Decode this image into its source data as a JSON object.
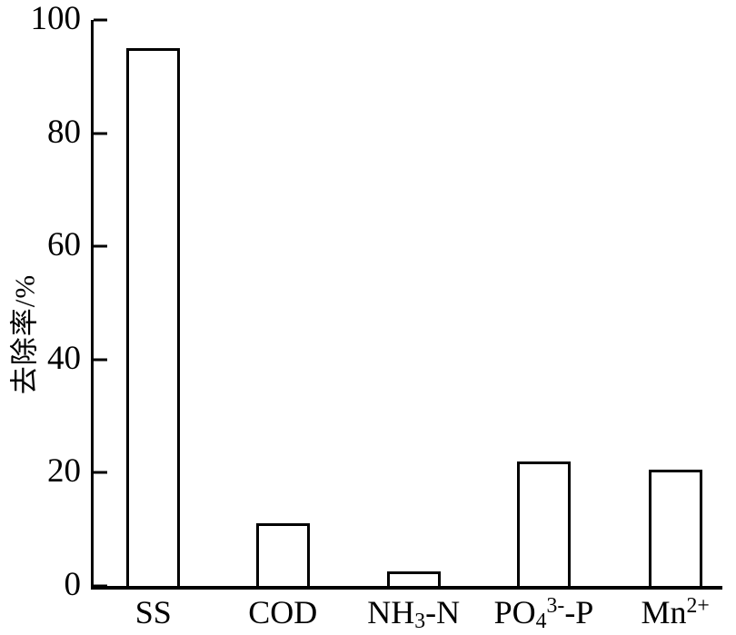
{
  "chart_data": {
    "type": "bar",
    "title": "",
    "xlabel": "",
    "ylabel": "去除率/%",
    "categories": [
      "SS",
      "COD",
      "NH₃-N",
      "PO₄³⁻-P",
      "Mn²⁺"
    ],
    "category_label_parts": [
      [
        {
          "s": "n",
          "t": "SS"
        }
      ],
      [
        {
          "s": "n",
          "t": "COD"
        }
      ],
      [
        {
          "s": "n",
          "t": "NH"
        },
        {
          "s": "sub",
          "t": "3"
        },
        {
          "s": "n",
          "t": "-N"
        }
      ],
      [
        {
          "s": "n",
          "t": "PO"
        },
        {
          "s": "sub",
          "t": "4"
        },
        {
          "s": "sup",
          "t": "3-"
        },
        {
          "s": "n",
          "t": "-P"
        }
      ],
      [
        {
          "s": "n",
          "t": "Mn"
        },
        {
          "s": "sup",
          "t": "2+"
        }
      ]
    ],
    "values": [
      95,
      11,
      2.5,
      22,
      20.5
    ],
    "ylim": [
      0,
      100
    ],
    "yticks": [
      0,
      20,
      40,
      60,
      80,
      100
    ],
    "grid": false,
    "legend": false,
    "bar_fill": "#ffffff",
    "bar_border": "#000000",
    "axis_color": "#000000",
    "layout": {
      "bar_centers_pct": [
        9.5,
        30.1,
        50.9,
        71.6,
        92.5
      ],
      "bar_width_pct": 8.5,
      "tick_direction": "in"
    }
  }
}
